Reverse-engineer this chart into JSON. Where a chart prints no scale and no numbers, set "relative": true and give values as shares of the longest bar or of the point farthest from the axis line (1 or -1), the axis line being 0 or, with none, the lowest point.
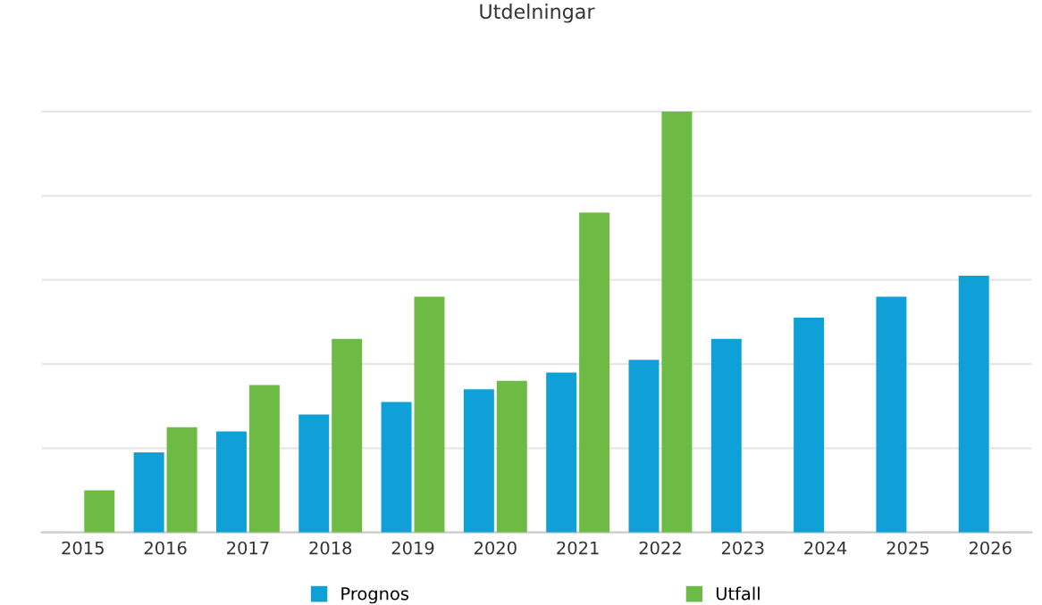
{
  "chart_data": {
    "type": "bar",
    "title": "Utdelningar",
    "relative": true,
    "grid": "y",
    "legend": "bottom",
    "categories": [
      "2015",
      "2016",
      "2017",
      "2018",
      "2019",
      "2020",
      "2021",
      "2022",
      "2023",
      "2024",
      "2025",
      "2026"
    ],
    "series": [
      {
        "name": "Prognos",
        "color": "#0fa0d8",
        "values": [
          null,
          0.19,
          0.24,
          0.28,
          0.31,
          0.34,
          0.38,
          0.41,
          0.46,
          0.51,
          0.56,
          0.61
        ]
      },
      {
        "name": "Utfall",
        "color": "#6dbb45",
        "values": [
          0.1,
          0.25,
          0.35,
          0.46,
          0.56,
          0.36,
          0.76,
          1,
          null,
          null,
          null,
          null
        ]
      }
    ]
  }
}
